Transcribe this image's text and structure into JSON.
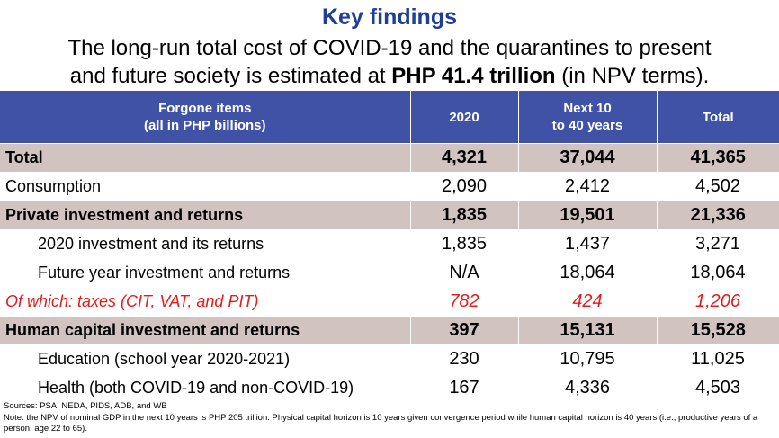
{
  "title": "Key findings",
  "subtitle": {
    "line1": "The long-run total cost of COVID-19 and the quarantines to present",
    "line2_before": "and future society is estimated at ",
    "line2_bold": "PHP 41.4 trillion",
    "line2_after": " (in NPV terms)."
  },
  "table": {
    "headers": {
      "col0_line1": "Forgone items",
      "col0_line2": "(all in PHP billions)",
      "col1": "2020",
      "col2_line1": "Next 10",
      "col2_line2": "to 40 years",
      "col3": "Total"
    },
    "rows": [
      {
        "label": "Total",
        "y2020": "4,321",
        "next": "37,044",
        "total": "41,365"
      },
      {
        "label": "Consumption",
        "y2020": "2,090",
        "next": "2,412",
        "total": "4,502"
      },
      {
        "label": "Private investment and returns",
        "y2020": "1,835",
        "next": "19,501",
        "total": "21,336"
      },
      {
        "label": "2020 investment and its returns",
        "y2020": "1,835",
        "next": "1,437",
        "total": "3,271"
      },
      {
        "label": "Future year investment and returns",
        "y2020": "N/A",
        "next": "18,064",
        "total": "18,064"
      },
      {
        "label": "Of which: taxes (CIT, VAT, and PIT)",
        "y2020": "782",
        "next": "424",
        "total": "1,206"
      },
      {
        "label": "Human capital investment and returns",
        "y2020": "397",
        "next": "15,131",
        "total": "15,528"
      },
      {
        "label": "Education (school year 2020-2021)",
        "y2020": "230",
        "next": "10,795",
        "total": "11,025"
      },
      {
        "label": "Health (both COVID-19 and non-COVID-19)",
        "y2020": "167",
        "next": "4,336",
        "total": "4,503"
      }
    ]
  },
  "footnotes": {
    "sources": "Sources: PSA, NEDA, PIDS, ADB, and WB",
    "note": "Note: the NPV of nominal GDP in the next 10 years is PHP 205 trillion. Physical capital horizon is 10 years given convergence period while human capital horizon is 40 years (i.e., productive years of a person, age 22 to 65)."
  },
  "colors": {
    "title": "#1f3e9a",
    "header_bg": "#3f52a5",
    "shaded_row": "#d1c3bf",
    "tax_row_text": "#e21c1c"
  }
}
